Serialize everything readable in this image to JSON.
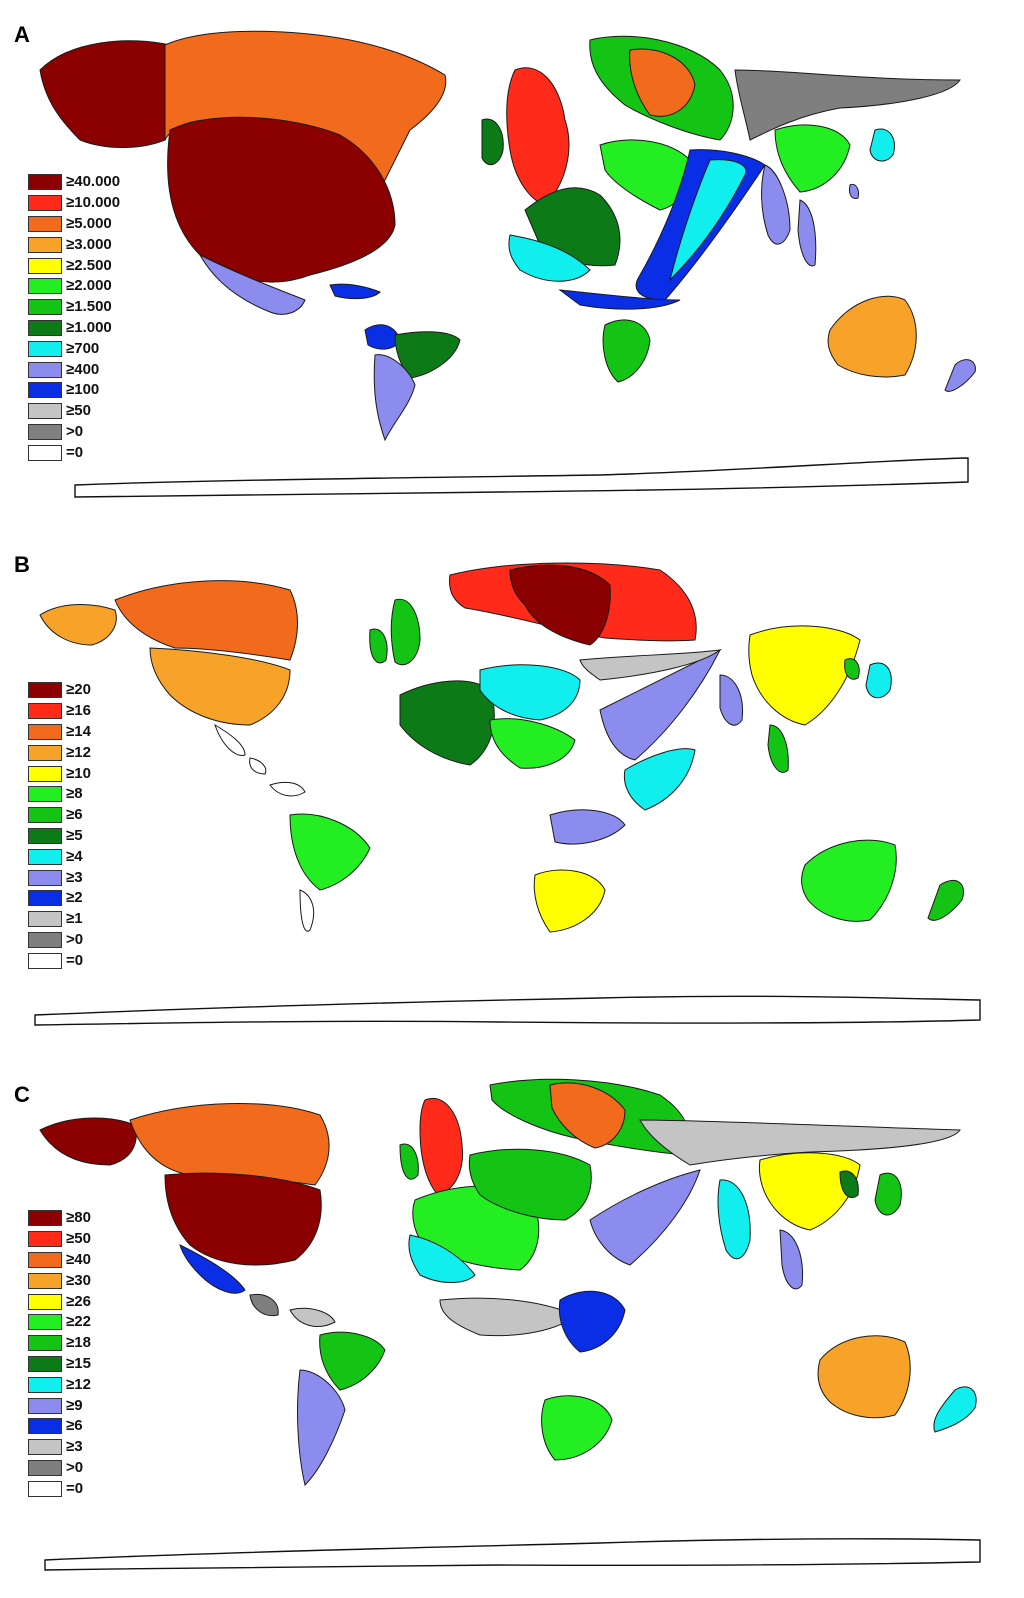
{
  "panels": [
    {
      "letter": "A",
      "legend": [
        {
          "label": "≥40.000",
          "color": "#8b0000"
        },
        {
          "label": "≥10.000",
          "color": "#ff2a1a"
        },
        {
          "label": "≥5.000",
          "color": "#f26b1d"
        },
        {
          "label": "≥3.000",
          "color": "#f7a32a"
        },
        {
          "label": "≥2.500",
          "color": "#ffff00"
        },
        {
          "label": "≥2.000",
          "color": "#22ee22"
        },
        {
          "label": "≥1.500",
          "color": "#14c414"
        },
        {
          "label": "≥1.000",
          "color": "#0d7a18"
        },
        {
          "label": "≥700",
          "color": "#11eeee"
        },
        {
          "label": "≥400",
          "color": "#8c8cee"
        },
        {
          "label": "≥100",
          "color": "#0a2ee6"
        },
        {
          "label": "≥50",
          "color": "#c4c4c4"
        },
        {
          "label": ">0",
          "color": "#7f7f7f"
        },
        {
          "label": "=0",
          "color": "#ffffff"
        }
      ]
    },
    {
      "letter": "B",
      "legend": [
        {
          "label": "≥20",
          "color": "#8b0000"
        },
        {
          "label": "≥16",
          "color": "#ff2a1a"
        },
        {
          "label": "≥14",
          "color": "#f26b1d"
        },
        {
          "label": "≥12",
          "color": "#f7a32a"
        },
        {
          "label": "≥10",
          "color": "#ffff00"
        },
        {
          "label": "≥8",
          "color": "#22ee22"
        },
        {
          "label": "≥6",
          "color": "#14c414"
        },
        {
          "label": "≥5",
          "color": "#0d7a18"
        },
        {
          "label": "≥4",
          "color": "#11eeee"
        },
        {
          "label": "≥3",
          "color": "#8c8cee"
        },
        {
          "label": "≥2",
          "color": "#0a2ee6"
        },
        {
          "label": "≥1",
          "color": "#c4c4c4"
        },
        {
          "label": ">0",
          "color": "#7f7f7f"
        },
        {
          "label": "=0",
          "color": "#ffffff"
        }
      ]
    },
    {
      "letter": "C",
      "legend": [
        {
          "label": "≥80",
          "color": "#8b0000"
        },
        {
          "label": "≥50",
          "color": "#ff2a1a"
        },
        {
          "label": "≥40",
          "color": "#f26b1d"
        },
        {
          "label": "≥30",
          "color": "#f7a32a"
        },
        {
          "label": "≥26",
          "color": "#ffff00"
        },
        {
          "label": "≥22",
          "color": "#22ee22"
        },
        {
          "label": "≥18",
          "color": "#14c414"
        },
        {
          "label": "≥15",
          "color": "#0d7a18"
        },
        {
          "label": "≥12",
          "color": "#11eeee"
        },
        {
          "label": "≥9",
          "color": "#8c8cee"
        },
        {
          "label": "≥6",
          "color": "#0a2ee6"
        },
        {
          "label": "≥3",
          "color": "#c4c4c4"
        },
        {
          "label": ">0",
          "color": "#7f7f7f"
        },
        {
          "label": "=0",
          "color": "#ffffff"
        }
      ]
    }
  ],
  "regions": {
    "A": {
      "alaska": "#8b0000",
      "canada": "#f26b1d",
      "usa": "#8b0000",
      "mexico": "#8c8cee",
      "central_america": "#0a2ee6",
      "south_america_north": "#0a2ee6",
      "brazil": "#0d7a18",
      "south_america_south": "#8c8cee",
      "uk": "#ff2a1a",
      "ireland": "#0d7a18",
      "scandinavia": "#14c414",
      "finland": "#f26b1d",
      "europe_west": "#0d7a18",
      "europe_central": "#22ee22",
      "europe_east": "#11eeee",
      "middle_east": "#0a2ee6",
      "africa_north": "#11eeee",
      "africa_central": "#0a2ee6",
      "south_africa": "#14c414",
      "russia_asia": "#7f7f7f",
      "india": "#8c8cee",
      "china": "#22ee22",
      "japan": "#11eeee",
      "korea": "#8c8cee",
      "southeast_asia": "#8c8cee",
      "australia": "#f7a32a",
      "new_zealand": "#8c8cee",
      "antarctica": "#ffffff"
    },
    "B": {
      "alaska": "#f7a32a",
      "canada": "#f26b1d",
      "usa": "#f7a32a",
      "mexico": "#ffffff",
      "central_america": "#ffffff",
      "south_america_north": "#ffffff",
      "brazil": "#22ee22",
      "south_america_south": "#ffffff",
      "uk": "#14c414",
      "ireland": "#14c414",
      "scandinavia": "#ff2a1a",
      "finland": "#8b0000",
      "europe_west": "#0d7a18",
      "europe_central": "#11eeee",
      "europe_east": "#22ee22",
      "middle_east": "#8c8cee",
      "africa_north": "#8c8cee",
      "africa_central": "#11eeee",
      "south_africa": "#ffff00",
      "russia_asia": "#c4c4c4",
      "india": "#8c8cee",
      "china": "#ffff00",
      "japan": "#11eeee",
      "korea": "#14c414",
      "southeast_asia": "#14c414",
      "australia": "#22ee22",
      "new_zealand": "#14c414",
      "antarctica": "#ffffff"
    },
    "C": {
      "alaska": "#8b0000",
      "canada": "#f26b1d",
      "usa": "#8b0000",
      "mexico": "#0a2ee6",
      "central_america": "#7f7f7f",
      "south_america_north": "#c4c4c4",
      "brazil": "#14c414",
      "south_america_south": "#8c8cee",
      "uk": "#ff2a1a",
      "ireland": "#14c414",
      "scandinavia": "#14c414",
      "finland": "#f26b1d",
      "europe_west": "#22ee22",
      "europe_central": "#14c414",
      "europe_east": "#11eeee",
      "middle_east": "#8c8cee",
      "africa_north": "#c4c4c4",
      "africa_central": "#0a2ee6",
      "south_africa": "#22ee22",
      "russia_asia": "#c4c4c4",
      "india": "#11eeee",
      "china": "#ffff00",
      "japan": "#14c414",
      "korea": "#0d7a18",
      "southeast_asia": "#8c8cee",
      "australia": "#f7a32a",
      "new_zealand": "#11eeee",
      "antarctica": "#ffffff"
    }
  }
}
